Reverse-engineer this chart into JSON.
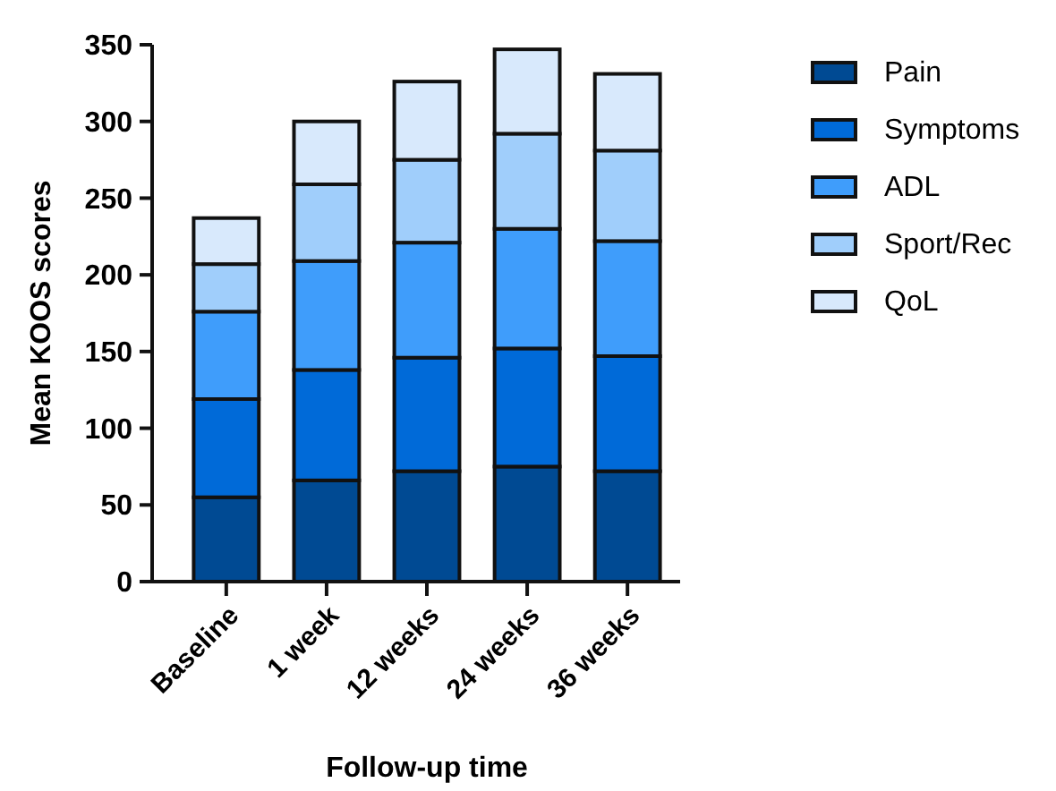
{
  "chart_data": {
    "type": "bar",
    "stacked": true,
    "xlabel": "Follow-up time",
    "ylabel": "Mean KOOS scores",
    "categories": [
      "Baseline",
      "1 week",
      "12 weeks",
      "24 weeks",
      "36 weeks"
    ],
    "series": [
      {
        "name": "Pain",
        "color": "#004a93",
        "values": [
          55,
          66,
          72,
          75,
          72
        ]
      },
      {
        "name": "Symptoms",
        "color": "#006ad8",
        "values": [
          64,
          72,
          74,
          77,
          75
        ]
      },
      {
        "name": "ADL",
        "color": "#3f9dfb",
        "values": [
          57,
          71,
          75,
          78,
          75
        ]
      },
      {
        "name": "Sport/Rec",
        "color": "#a0cefb",
        "values": [
          31,
          50,
          54,
          62,
          59
        ]
      },
      {
        "name": "QoL",
        "color": "#d8e9fc",
        "values": [
          30,
          41,
          51,
          55,
          50
        ]
      }
    ],
    "ylim": [
      0,
      350
    ],
    "yticks": [
      0,
      50,
      100,
      150,
      200,
      250,
      300,
      350
    ],
    "grid": false,
    "legend": "right"
  }
}
